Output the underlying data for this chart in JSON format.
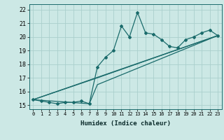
{
  "xlabel": "Humidex (Indice chaleur)",
  "xlim": [
    -0.5,
    23.5
  ],
  "ylim": [
    14.7,
    22.4
  ],
  "xticks": [
    0,
    1,
    2,
    3,
    4,
    5,
    6,
    7,
    8,
    9,
    10,
    11,
    12,
    13,
    14,
    15,
    16,
    17,
    18,
    19,
    20,
    21,
    22,
    23
  ],
  "yticks": [
    15,
    16,
    17,
    18,
    19,
    20,
    21,
    22
  ],
  "bg_color": "#cce8e5",
  "line_color": "#1a6b6b",
  "grid_color": "#aacfcc",
  "main_x": [
    0,
    1,
    2,
    3,
    4,
    5,
    6,
    7,
    8,
    9,
    10,
    11,
    12,
    13,
    14,
    15,
    16,
    17,
    18,
    19,
    20,
    21,
    22,
    23
  ],
  "main_y": [
    15.4,
    15.3,
    15.2,
    15.1,
    15.2,
    15.2,
    15.3,
    15.1,
    17.8,
    18.5,
    19.0,
    20.8,
    20.0,
    21.8,
    20.3,
    20.2,
    19.8,
    19.3,
    19.2,
    19.8,
    20.0,
    20.3,
    20.5,
    20.1
  ],
  "trend1_x": [
    0,
    23
  ],
  "trend1_y": [
    15.4,
    20.1
  ],
  "trend2_x": [
    0,
    8,
    23
  ],
  "trend2_y": [
    15.4,
    17.0,
    20.1
  ],
  "trend3_x": [
    0,
    7,
    8,
    23
  ],
  "trend3_y": [
    15.4,
    15.1,
    16.5,
    20.1
  ]
}
